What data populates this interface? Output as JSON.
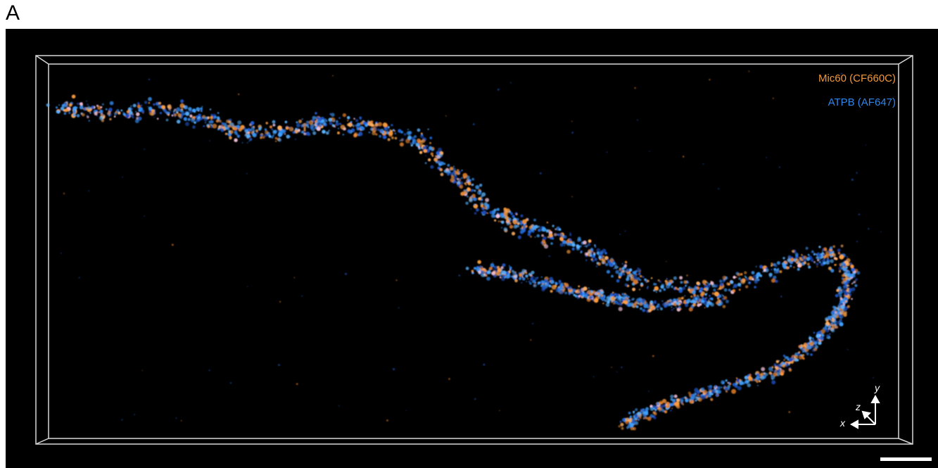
{
  "panel_label": "A",
  "legend": {
    "mic60": {
      "label": "Mic60 (CF660C)",
      "color": "#f2973a"
    },
    "atpb": {
      "label": "ATPB (AF647)",
      "color": "#2f86e8"
    }
  },
  "axes": {
    "x": "x",
    "y": "y",
    "z": "z"
  },
  "colors": {
    "background": "#000000",
    "box": "#d8d8d8",
    "scale_bar": "#ffffff"
  }
}
